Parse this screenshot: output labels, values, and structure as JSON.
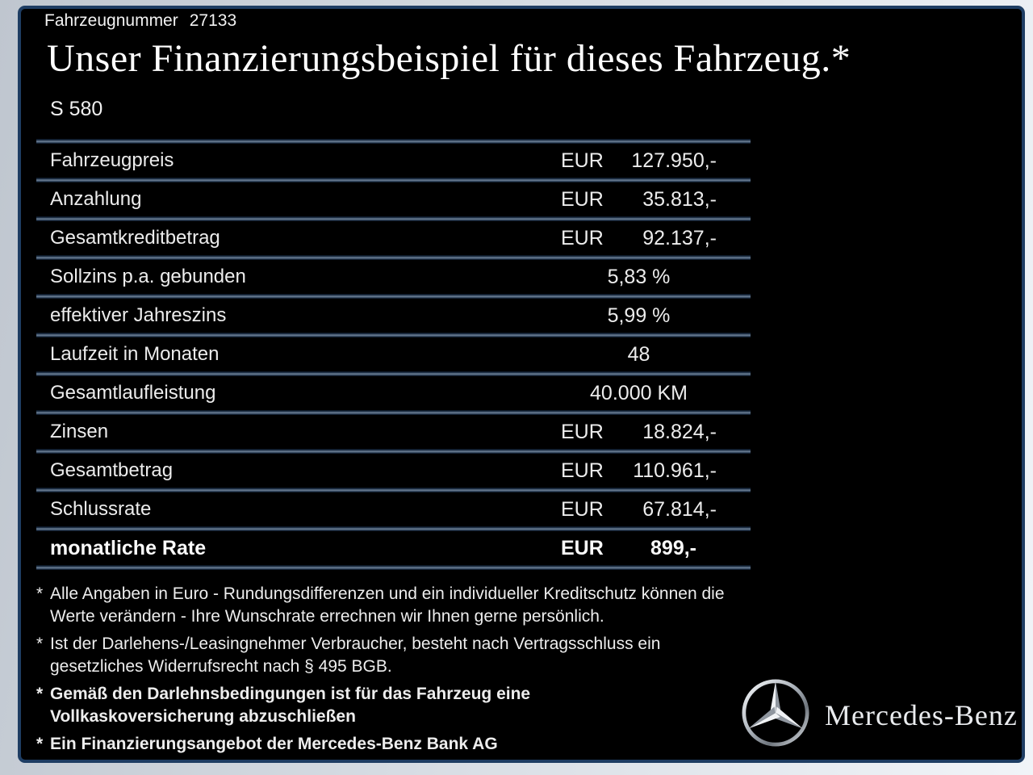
{
  "header": {
    "vehicle_number_label": "Fahrzeugnummer",
    "vehicle_number": "27133",
    "title": "Unser Finanzierungsbeispiel für dieses Fahrzeug.*",
    "model": "S 580"
  },
  "table": {
    "rows": [
      {
        "label": "Fahrzeugpreis",
        "prefix": "EUR",
        "value": "127.950,-",
        "align": "right",
        "bold": false
      },
      {
        "label": "Anzahlung",
        "prefix": "EUR",
        "value": "35.813,-",
        "align": "right",
        "bold": false
      },
      {
        "label": "Gesamtkreditbetrag",
        "prefix": "EUR",
        "value": "92.137,-",
        "align": "right",
        "bold": false
      },
      {
        "label": "Sollzins p.a. gebunden",
        "prefix": "",
        "value": "5,83 %",
        "align": "center",
        "bold": false
      },
      {
        "label": "effektiver Jahreszins",
        "prefix": "",
        "value": "5,99 %",
        "align": "center",
        "bold": false
      },
      {
        "label": "Laufzeit in Monaten",
        "prefix": "",
        "value": "48",
        "align": "center",
        "bold": false
      },
      {
        "label": "Gesamtlaufleistung",
        "prefix": "",
        "value": "40.000 KM",
        "align": "center",
        "bold": false
      },
      {
        "label": "Zinsen",
        "prefix": "EUR",
        "value": "18.824,-",
        "align": "right",
        "bold": false
      },
      {
        "label": "Gesamtbetrag",
        "prefix": "EUR",
        "value": "110.961,-",
        "align": "right",
        "bold": false
      },
      {
        "label": "Schlussrate",
        "prefix": "EUR",
        "value": "67.814,-",
        "align": "right",
        "bold": false
      },
      {
        "label": "monatliche Rate",
        "prefix": "EUR",
        "value": "899,-",
        "align": "right",
        "bold": true
      }
    ]
  },
  "footnotes": [
    {
      "marker": "*",
      "bold": false,
      "lines": [
        "Alle Angaben in Euro - Rundungsdifferenzen und ein individueller Kreditschutz können die",
        "Werte verändern - Ihre Wunschrate errechnen wir Ihnen gerne persönlich."
      ]
    },
    {
      "marker": "*",
      "bold": false,
      "lines": [
        "Ist der Darlehens-/Leasingnehmer Verbraucher, besteht nach Vertragsschluss ein",
        "gesetzliches Widerrufsrecht nach § 495 BGB."
      ]
    },
    {
      "marker": "*",
      "bold": true,
      "lines": [
        "Gemäß den Darlehnsbedingungen ist für das Fahrzeug eine",
        "Vollkaskoversicherung abzuschließen"
      ]
    },
    {
      "marker": "*",
      "bold": true,
      "lines": [
        "Ein Finanzierungsangebot der Mercedes-Benz Bank AG"
      ]
    }
  ],
  "brand": {
    "logo": "mercedes-star-icon",
    "wordmark": "Mercedes-Benz"
  },
  "colors": {
    "background": "#000000",
    "frame_light": "#f1f4f8",
    "frame_dark": "#bfc6cf",
    "border_navy": "#1e3d63",
    "divider": "#5f7288",
    "divider_edge": "#060f1c",
    "text": "#ececec"
  }
}
